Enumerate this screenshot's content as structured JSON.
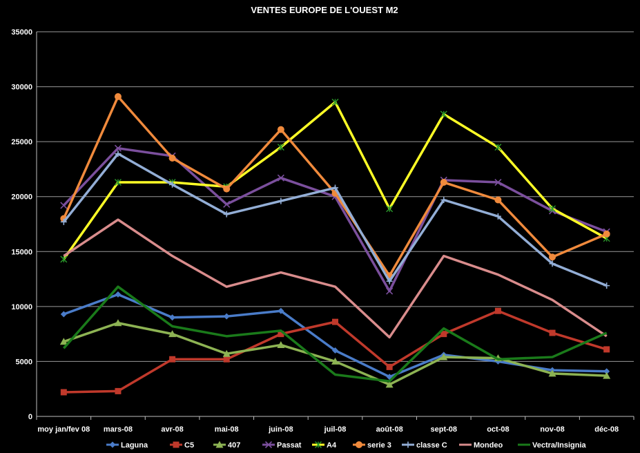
{
  "chart_data": {
    "type": "line",
    "title": "VENTES EUROPE DE L'OUEST M2",
    "xlabel": "",
    "ylabel": "",
    "ylim": [
      0,
      35000
    ],
    "yticks": [
      0,
      5000,
      10000,
      15000,
      20000,
      25000,
      30000,
      35000
    ],
    "grid": true,
    "legend_position": "bottom",
    "categories": [
      "moy jan/fev 08",
      "mars-08",
      "avr-08",
      "mai-08",
      "juin-08",
      "juil-08",
      "août-08",
      "sept-08",
      "oct-08",
      "nov-08",
      "déc-08"
    ],
    "series": [
      {
        "name": "Laguna",
        "color": "#4a7cc9",
        "marker": "diamond",
        "values": [
          9300,
          11100,
          9000,
          9100,
          9600,
          6000,
          3600,
          5600,
          5000,
          4200,
          4100
        ]
      },
      {
        "name": "C5",
        "color": "#c0392b",
        "marker": "square",
        "values": [
          2200,
          2300,
          5200,
          5200,
          7500,
          8600,
          4500,
          7500,
          9600,
          7600,
          6100
        ]
      },
      {
        "name": "407",
        "color": "#8db353",
        "marker": "triangle",
        "values": [
          6800,
          8500,
          7500,
          5700,
          6500,
          5000,
          2900,
          5400,
          5300,
          3900,
          3700
        ]
      },
      {
        "name": "Passat",
        "color": "#7b4f9d",
        "marker": "x",
        "values": [
          19200,
          24400,
          23700,
          19300,
          21700,
          20000,
          11400,
          21500,
          21300,
          18700,
          16800
        ]
      },
      {
        "name": "A4",
        "color": "#ffff26",
        "marker": "star",
        "values": [
          14300,
          21300,
          21300,
          20900,
          24500,
          28600,
          18900,
          27500,
          24500,
          18900,
          16200
        ]
      },
      {
        "name": "serie 3",
        "color": "#f08a3c",
        "marker": "circle",
        "values": [
          18000,
          29100,
          23500,
          20700,
          26100,
          20300,
          12800,
          21300,
          19700,
          14500,
          16600
        ]
      },
      {
        "name": "classe C",
        "color": "#93aed6",
        "marker": "plus",
        "values": [
          17700,
          23900,
          21100,
          18400,
          19600,
          20800,
          12300,
          19700,
          18200,
          13900,
          11900
        ]
      },
      {
        "name": "Mondeo",
        "color": "#d98c8c",
        "marker": "none",
        "values": [
          14600,
          17900,
          14600,
          11800,
          13100,
          11800,
          7200,
          14600,
          12900,
          10600,
          7300
        ]
      },
      {
        "name": "Vectra/Insignia",
        "color": "#1a7a1a",
        "marker": "none",
        "values": [
          6200,
          11800,
          8200,
          7300,
          7800,
          3800,
          3200,
          8000,
          5200,
          5400,
          7600
        ]
      }
    ]
  }
}
